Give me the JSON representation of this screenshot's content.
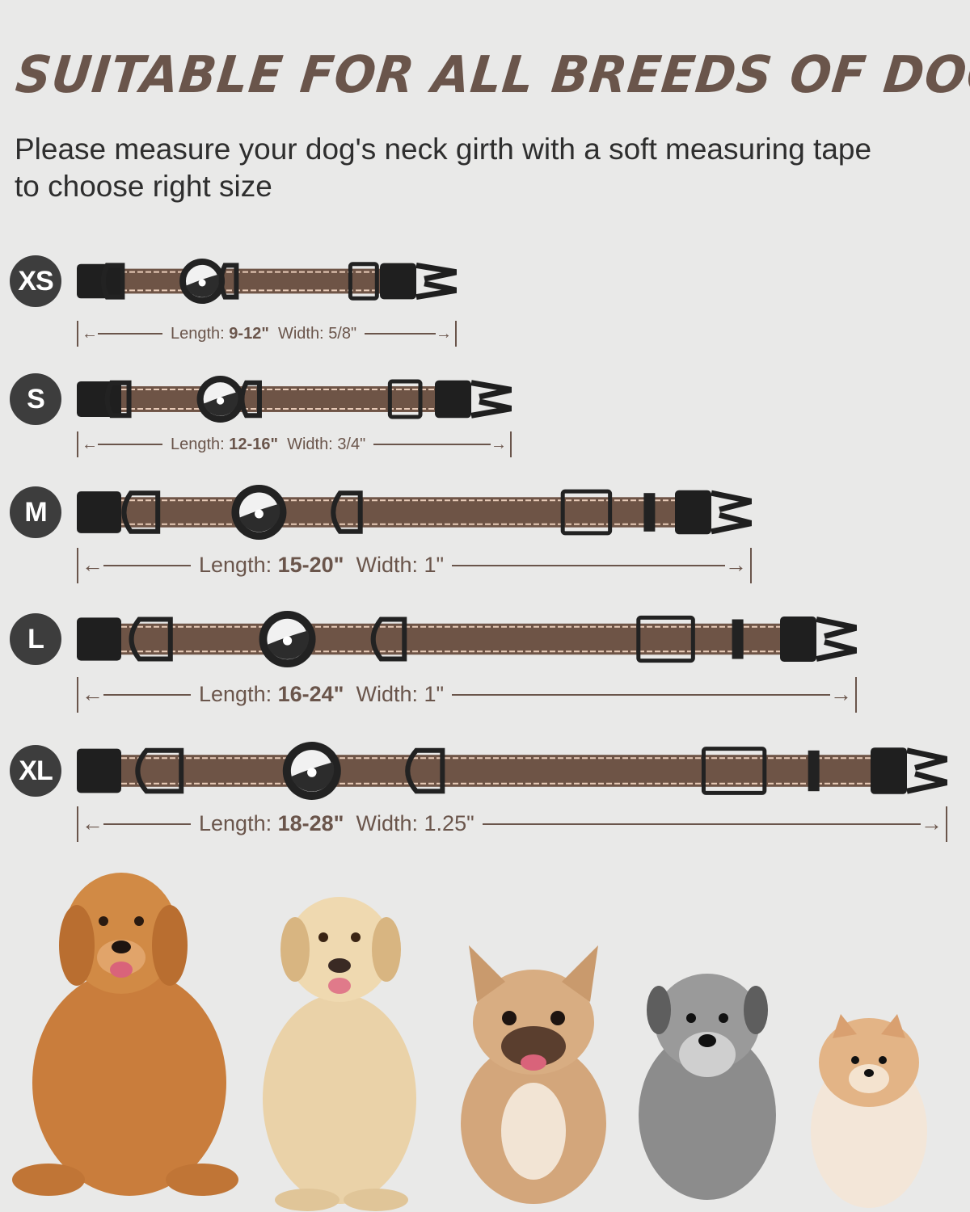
{
  "title": "SUITABLE FOR ALL BREEDS OF DOGS",
  "subtitle": "Please measure your dog's neck girth with a soft measuring tape to choose right size",
  "colors": {
    "brand_brown": "#6a554b",
    "strap": "#6e5446",
    "badge": "#3d3d3d",
    "background": "#e9e9e8"
  },
  "length_label": "Length:",
  "width_label": "Width:",
  "sizes": [
    {
      "size": "XS",
      "length": "9-12\"",
      "width": "5/8\""
    },
    {
      "size": "S",
      "length": "12-16\"",
      "width": "3/4\""
    },
    {
      "size": "M",
      "length": "15-20\"",
      "width": "1\""
    },
    {
      "size": "L",
      "length": "16-24\"",
      "width": "1\""
    },
    {
      "size": "XL",
      "length": "18-28\"",
      "width": "1.25\""
    }
  ],
  "dogs": [
    "golden-retriever",
    "labrador",
    "french-bulldog",
    "schnauzer",
    "pomeranian"
  ]
}
